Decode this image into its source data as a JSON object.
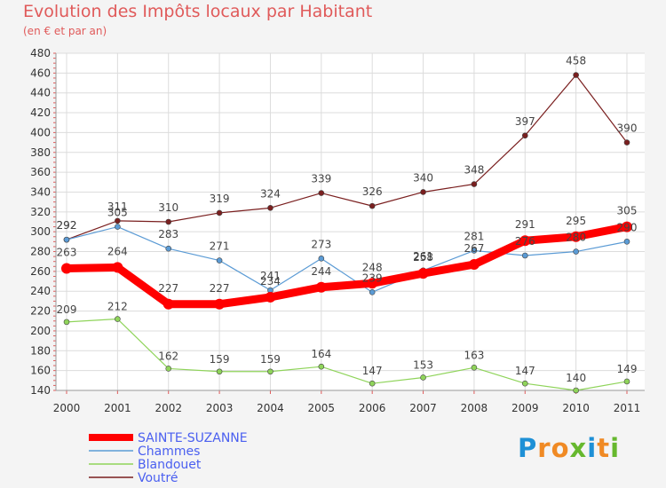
{
  "title": "Evolution des Impôts locaux par Habitant",
  "subtitle": "(en € et par an)",
  "logo": {
    "text": "Proxiti",
    "letters": [
      {
        "ch": "P",
        "color": "#1e90d6"
      },
      {
        "ch": "r",
        "color": "#f08a24"
      },
      {
        "ch": "o",
        "color": "#f08a24"
      },
      {
        "ch": "x",
        "color": "#66b82e"
      },
      {
        "ch": "i",
        "color": "#1e90d6"
      },
      {
        "ch": "t",
        "color": "#f08a24"
      },
      {
        "ch": "i",
        "color": "#66b82e"
      }
    ]
  },
  "chart_data": {
    "type": "line",
    "title": "Evolution des Impôts locaux par Habitant",
    "subtitle": "(en € et par an)",
    "x": [
      "2000",
      "2001",
      "2002",
      "2003",
      "2004",
      "2005",
      "2006",
      "2007",
      "2008",
      "2009",
      "2010",
      "2011"
    ],
    "ylim": [
      140,
      480
    ],
    "yticks": [
      140,
      160,
      180,
      200,
      220,
      240,
      260,
      280,
      300,
      320,
      340,
      360,
      380,
      400,
      420,
      440,
      460,
      480
    ],
    "grid": true,
    "legend_position": "bottom-left",
    "series": [
      {
        "name": "SAINTE-SUZANNE",
        "color": "#ff0000",
        "width": 9,
        "labels": true,
        "values": [
          263,
          264,
          227,
          227,
          234,
          244,
          248,
          258,
          267,
          291,
          295,
          305
        ]
      },
      {
        "name": "Chammes",
        "color": "#5b9bd5",
        "width": 1.2,
        "labels": true,
        "values": [
          292,
          305,
          283,
          271,
          241,
          273,
          239,
          261,
          281,
          276,
          280,
          290
        ]
      },
      {
        "name": "Blandouet",
        "color": "#8fd45a",
        "width": 1.2,
        "labels": true,
        "values": [
          209,
          212,
          162,
          159,
          159,
          164,
          147,
          153,
          163,
          147,
          140,
          149
        ]
      },
      {
        "name": "Voutré",
        "color": "#7a1f1f",
        "width": 1.2,
        "labels": true,
        "values": [
          292,
          311,
          310,
          319,
          324,
          339,
          326,
          340,
          348,
          397,
          458,
          390
        ]
      }
    ],
    "legend_text_color": "#4a5ff0"
  }
}
